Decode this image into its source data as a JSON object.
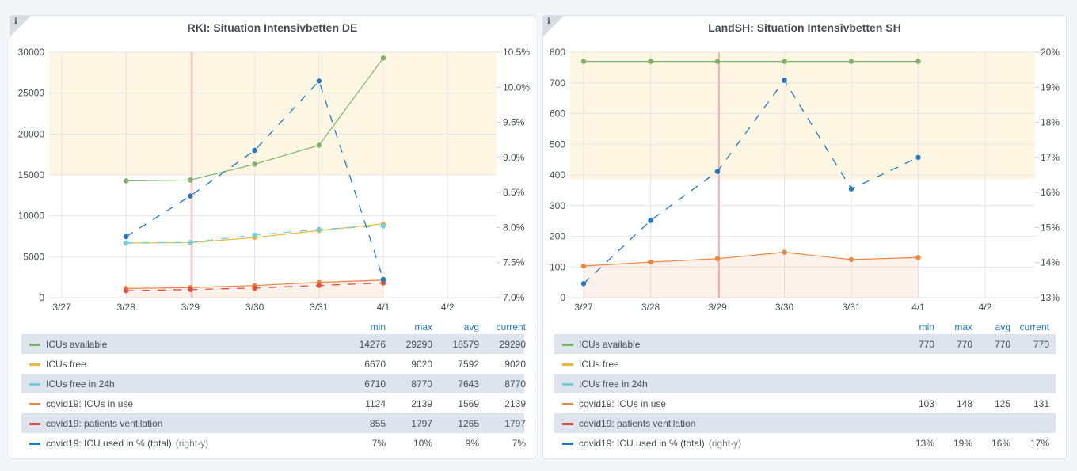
{
  "legend_headers": {
    "min": "min",
    "max": "max",
    "avg": "avg",
    "current": "current"
  },
  "chart_data": [
    {
      "type": "line",
      "title": "RKI: Situation Intensivbetten DE",
      "categories": [
        "3/27",
        "3/28",
        "3/29",
        "3/30",
        "3/31",
        "4/1",
        "4/2"
      ],
      "y_left": {
        "range": [
          0,
          30000
        ],
        "ticks": [
          "0",
          "5000",
          "10000",
          "15000",
          "20000",
          "25000",
          "30000"
        ],
        "tick_values": [
          0,
          5000,
          10000,
          15000,
          20000,
          25000,
          30000
        ]
      },
      "y_right": {
        "range": [
          7.0,
          10.5
        ],
        "ticks": [
          "7.0%",
          "7.5%",
          "8.0%",
          "8.5%",
          "9.0%",
          "9.5%",
          "10.0%",
          "10.5%"
        ],
        "tick_values": [
          7.0,
          7.5,
          8.0,
          8.5,
          9.0,
          9.5,
          10.0,
          10.5
        ]
      },
      "threshold_band": {
        "from": 15000,
        "to": 30000,
        "color": "#fdf6e3"
      },
      "annotation_x": "3/29",
      "grid": true,
      "legend_placement": "bottom-table",
      "series": [
        {
          "name": "ICUs available",
          "color": "#7eb26d",
          "dashed": false,
          "axis": "left",
          "values": [
            null,
            14276,
            14390,
            16310,
            18629,
            29290,
            null
          ],
          "stats": {
            "min": "14276",
            "max": "29290",
            "avg": "18579",
            "current": "29290"
          }
        },
        {
          "name": "ICUs free",
          "color": "#eab839",
          "dashed": false,
          "axis": "left",
          "values": [
            null,
            6670,
            6720,
            7350,
            8200,
            9020,
            null
          ],
          "stats": {
            "min": "6670",
            "max": "9020",
            "avg": "7592",
            "current": "9020"
          }
        },
        {
          "name": "ICUs free in 24h",
          "color": "#6ed0e0",
          "dashed": true,
          "axis": "left",
          "values": [
            null,
            6710,
            6750,
            7640,
            8345,
            8770,
            null
          ],
          "stats": {
            "min": "6710",
            "max": "8770",
            "avg": "7643",
            "current": "8770"
          }
        },
        {
          "name": "covid19: ICUs in use",
          "color": "#ef843c",
          "dashed": false,
          "axis": "left",
          "fill": true,
          "values": [
            null,
            1124,
            1230,
            1480,
            1872,
            2139,
            null
          ],
          "stats": {
            "min": "1124",
            "max": "2139",
            "avg": "1569",
            "current": "2139"
          }
        },
        {
          "name": "covid19: patients ventilation",
          "color": "#e24d42",
          "dashed": true,
          "axis": "left",
          "values": [
            null,
            855,
            1000,
            1180,
            1493,
            1797,
            null
          ],
          "stats": {
            "min": "855",
            "max": "1797",
            "avg": "1265",
            "current": "1797"
          }
        },
        {
          "name": "covid19: ICU used in % (total)",
          "right_y_label": "(right-y)",
          "color": "#1f78c1",
          "dashed": true,
          "axis": "right",
          "values": [
            null,
            7.87,
            8.45,
            9.1,
            10.09,
            7.26,
            null
          ],
          "stats": {
            "min": "7%",
            "max": "10%",
            "avg": "9%",
            "current": "7%"
          }
        }
      ]
    },
    {
      "type": "line",
      "title": "LandSH: Situation Intensivbetten SH",
      "categories": [
        "3/27",
        "3/28",
        "3/29",
        "3/30",
        "3/31",
        "4/1",
        "4/2"
      ],
      "y_left": {
        "range": [
          0,
          800
        ],
        "ticks": [
          "0",
          "100",
          "200",
          "300",
          "400",
          "500",
          "600",
          "700",
          "800"
        ],
        "tick_values": [
          0,
          100,
          200,
          300,
          400,
          500,
          600,
          700,
          800
        ]
      },
      "y_right": {
        "range": [
          13,
          20
        ],
        "ticks": [
          "13%",
          "14%",
          "15%",
          "16%",
          "17%",
          "18%",
          "19%",
          "20%"
        ],
        "tick_values": [
          13,
          14,
          15,
          16,
          17,
          18,
          19,
          20
        ]
      },
      "threshold_band": {
        "from": 385,
        "to": 800,
        "color": "#fdf6e3"
      },
      "annotation_x": "3/29",
      "grid": true,
      "legend_placement": "bottom-table",
      "series": [
        {
          "name": "ICUs available",
          "color": "#7eb26d",
          "dashed": false,
          "axis": "left",
          "values": [
            770,
            770,
            770,
            770,
            770,
            770,
            null
          ],
          "stats": {
            "min": "770",
            "max": "770",
            "avg": "770",
            "current": "770"
          }
        },
        {
          "name": "ICUs free",
          "color": "#eab839",
          "dashed": false,
          "axis": "left",
          "values": [
            null,
            null,
            null,
            null,
            null,
            null,
            null
          ],
          "stats": {
            "min": "",
            "max": "",
            "avg": "",
            "current": ""
          }
        },
        {
          "name": "ICUs free in 24h",
          "color": "#6ed0e0",
          "dashed": true,
          "axis": "left",
          "values": [
            null,
            null,
            null,
            null,
            null,
            null,
            null
          ],
          "stats": {
            "min": "",
            "max": "",
            "avg": "",
            "current": ""
          }
        },
        {
          "name": "covid19: ICUs in use",
          "color": "#ef843c",
          "dashed": false,
          "axis": "left",
          "fill": true,
          "values": [
            103,
            116,
            127,
            148,
            124,
            131,
            null
          ],
          "stats": {
            "min": "103",
            "max": "148",
            "avg": "125",
            "current": "131"
          }
        },
        {
          "name": "covid19: patients ventilation",
          "color": "#e24d42",
          "dashed": true,
          "axis": "left",
          "values": [
            null,
            null,
            null,
            null,
            null,
            null,
            null
          ],
          "stats": {
            "min": "",
            "max": "",
            "avg": "",
            "current": ""
          }
        },
        {
          "name": "covid19: ICU used in % (total)",
          "right_y_label": "(right-y)",
          "color": "#1f78c1",
          "dashed": true,
          "axis": "right",
          "values": [
            13.4,
            15.2,
            16.6,
            19.2,
            16.1,
            17.0,
            null
          ],
          "stats": {
            "min": "13%",
            "max": "19%",
            "avg": "16%",
            "current": "17%"
          }
        }
      ]
    }
  ]
}
